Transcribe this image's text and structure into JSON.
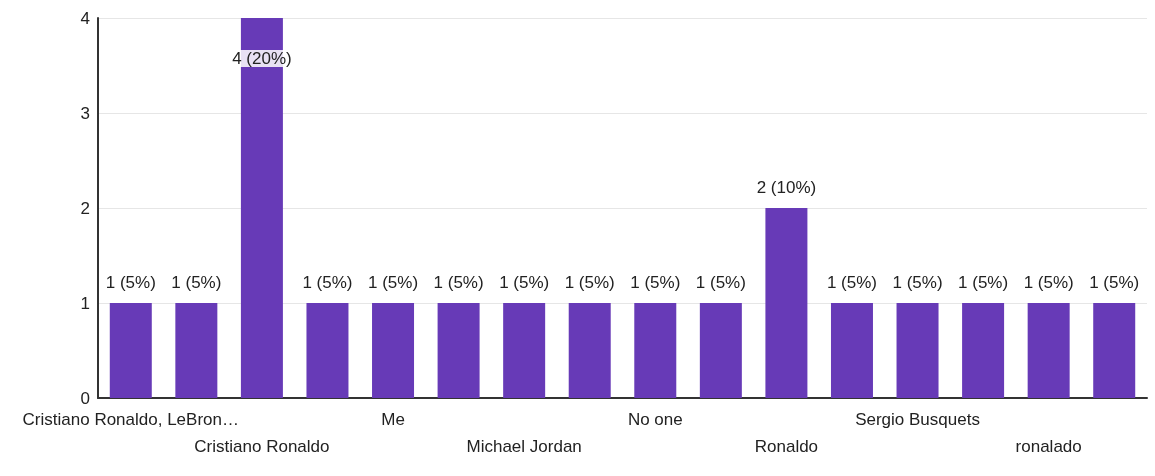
{
  "chart_data": {
    "type": "bar",
    "categories": [
      "Cristiano Ronaldo, LeBron…",
      null,
      "Cristiano Ronaldo",
      null,
      "Me",
      null,
      "Michael Jordan",
      null,
      "No one",
      null,
      "Ronaldo",
      null,
      "Sergio Busquets",
      null,
      "ronalado",
      null
    ],
    "values": [
      1,
      1,
      4,
      1,
      1,
      1,
      1,
      1,
      1,
      1,
      2,
      1,
      1,
      1,
      1,
      1
    ],
    "value_labels": [
      "1 (5%)",
      "1 (5%)",
      "4 (20%)",
      "1 (5%)",
      "1 (5%)",
      "1 (5%)",
      "1 (5%)",
      "1 (5%)",
      "1 (5%)",
      "1 (5%)",
      "2 (10%)",
      "1 (5%)",
      "1 (5%)",
      "1 (5%)",
      "1 (5%)",
      "1 (5%)"
    ],
    "color": "#673ab7",
    "ylim": [
      0,
      4
    ],
    "yticks": [
      0,
      1,
      2,
      3,
      4
    ],
    "grid": "y"
  }
}
